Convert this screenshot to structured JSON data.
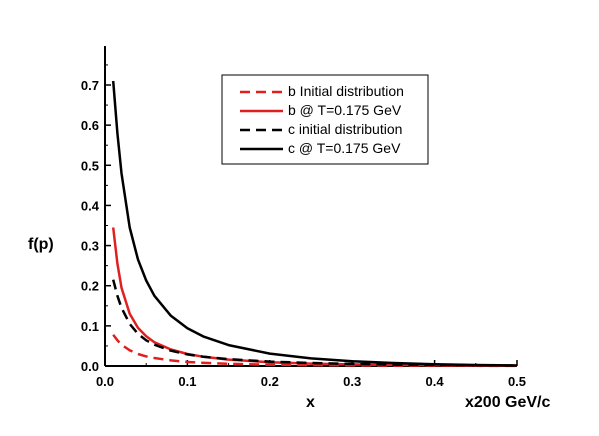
{
  "chart_data": {
    "type": "line",
    "title": "",
    "xlabel": "x",
    "xunit_label": "x200 GeV/c",
    "ylabel": "f(p)",
    "xlim": [
      0.0,
      0.5
    ],
    "ylim": [
      0.0,
      0.75
    ],
    "x_ticks": [
      "0.0",
      "0.1",
      "0.2",
      "0.3",
      "0.4",
      "0.5"
    ],
    "y_ticks": [
      "0.0",
      "0.1",
      "0.2",
      "0.3",
      "0.4",
      "0.5",
      "0.6",
      "0.7"
    ],
    "grid": false,
    "legend_position": "top-right",
    "series": [
      {
        "name": "b Initial distribution",
        "color": "#e02020",
        "dash": "dashed",
        "x": [
          0.01,
          0.015,
          0.02,
          0.03,
          0.04,
          0.05,
          0.06,
          0.08,
          0.1,
          0.12,
          0.15,
          0.2,
          0.25,
          0.3,
          0.35,
          0.4,
          0.45,
          0.5
        ],
        "y": [
          0.078,
          0.064,
          0.053,
          0.039,
          0.03,
          0.024,
          0.02,
          0.014,
          0.01,
          0.0078,
          0.0055,
          0.0033,
          0.0022,
          0.0015,
          0.001,
          0.0007,
          0.0005,
          0.0003
        ]
      },
      {
        "name": "b @ T=0.175 GeV",
        "color": "#e02020",
        "dash": "solid",
        "x": [
          0.01,
          0.015,
          0.02,
          0.03,
          0.04,
          0.05,
          0.06,
          0.08,
          0.1,
          0.12,
          0.15,
          0.2,
          0.25,
          0.3,
          0.35,
          0.4,
          0.45,
          0.5
        ],
        "y": [
          0.345,
          0.255,
          0.195,
          0.13,
          0.095,
          0.074,
          0.059,
          0.041,
          0.03,
          0.023,
          0.016,
          0.0095,
          0.006,
          0.004,
          0.0027,
          0.0018,
          0.0012,
          0.0008
        ]
      },
      {
        "name": "c initial distribution",
        "color": "#000000",
        "dash": "dashed",
        "x": [
          0.01,
          0.015,
          0.02,
          0.03,
          0.04,
          0.05,
          0.06,
          0.08,
          0.1,
          0.12,
          0.15,
          0.2,
          0.25,
          0.3,
          0.35,
          0.4,
          0.45,
          0.5
        ],
        "y": [
          0.215,
          0.175,
          0.145,
          0.105,
          0.08,
          0.064,
          0.053,
          0.038,
          0.029,
          0.023,
          0.017,
          0.011,
          0.0075,
          0.0052,
          0.0036,
          0.0025,
          0.0018,
          0.0012
        ]
      },
      {
        "name": "c @ T=0.175 GeV",
        "color": "#000000",
        "dash": "solid",
        "x": [
          0.01,
          0.015,
          0.02,
          0.03,
          0.04,
          0.05,
          0.06,
          0.08,
          0.1,
          0.12,
          0.15,
          0.2,
          0.25,
          0.3,
          0.35,
          0.4,
          0.45,
          0.5
        ],
        "y": [
          0.71,
          0.58,
          0.48,
          0.345,
          0.265,
          0.213,
          0.175,
          0.125,
          0.094,
          0.073,
          0.052,
          0.031,
          0.019,
          0.012,
          0.0075,
          0.0045,
          0.0025,
          0.0012
        ]
      }
    ]
  }
}
